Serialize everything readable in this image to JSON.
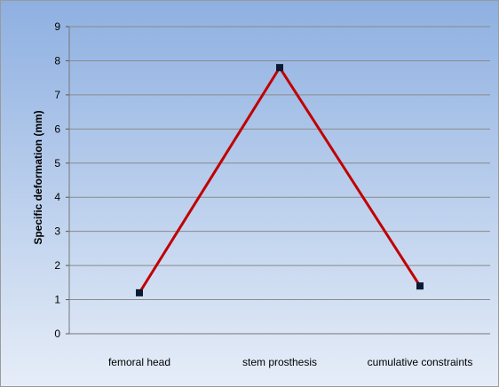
{
  "chart_data": {
    "type": "line",
    "title": "",
    "xlabel": "",
    "ylabel": "Specific deformation  (mm)",
    "categories": [
      "femoral head",
      "stem prosthesis",
      "cumulative constraints"
    ],
    "series": [
      {
        "values": [
          1.2,
          7.8,
          1.4
        ]
      }
    ],
    "ylim": [
      0,
      9
    ],
    "yticks": [
      "0",
      "1",
      "2",
      "3",
      "4",
      "5",
      "6",
      "7",
      "8",
      "9"
    ],
    "grid": true,
    "legend": "none",
    "colors": {
      "line": "#c00000",
      "marker": "#0b1a33",
      "grid": "#8a8a8a",
      "frame": "#9a9a9a",
      "background_top": "#8eb0e1",
      "background_bottom": "#e6edf8"
    }
  }
}
